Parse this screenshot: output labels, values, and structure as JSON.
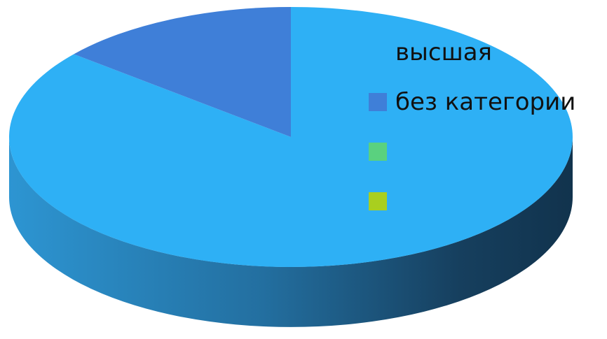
{
  "chart_data": {
    "type": "pie",
    "style": "3d",
    "title": "",
    "legend_position": "right",
    "slices": [
      {
        "label": "высшая",
        "value": 86,
        "color": "#2EB0F5"
      },
      {
        "label": "без категории",
        "value": 14,
        "color": "#3F7FD8"
      },
      {
        "label": "",
        "value": 0,
        "color": "#5AD17F"
      },
      {
        "label": "",
        "value": 0,
        "color": "#A9CF1F"
      }
    ]
  }
}
